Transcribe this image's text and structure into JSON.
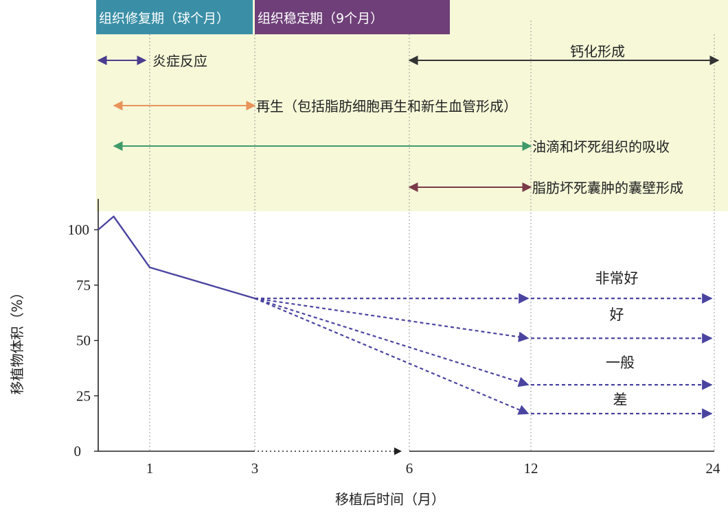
{
  "phases": [
    {
      "label": "组织修复期（球个月）",
      "color": "#3a8fa6"
    },
    {
      "label": "组织稳定期（9个月）",
      "color": "#6e3f78"
    }
  ],
  "processes": [
    {
      "label": "炎症反应",
      "from": 0,
      "to": 1,
      "color": "#4a3d8f"
    },
    {
      "label": "钙化形成",
      "from": 6,
      "to": 24,
      "color": "#333333"
    },
    {
      "label": "再生（包括脂肪细胞再生和新生血管形成）",
      "from": 0.3,
      "to": 3,
      "color": "#e8935a"
    },
    {
      "label": "油滴和坏死组织的吸收",
      "from": 0.3,
      "to": 12,
      "color": "#3f9a6b"
    },
    {
      "label": "脂肪坏死囊肿的囊壁形成",
      "from": 6,
      "to": 12,
      "color": "#7a3a4a"
    }
  ],
  "chart_data": {
    "type": "line",
    "xlabel": "移植后时间（月）",
    "ylabel": "移植物体积（%）",
    "x_ticks": [
      1,
      3,
      6,
      12,
      24
    ],
    "y_ticks": [
      0,
      25,
      50,
      75,
      100
    ],
    "ylim": [
      0,
      110
    ],
    "series": [
      {
        "x": [
          0,
          0.3,
          1,
          3
        ],
        "values": [
          100,
          106,
          83,
          69
        ],
        "style": "solid"
      },
      {
        "name": "非常好",
        "x": [
          3,
          12,
          24
        ],
        "values": [
          69,
          69,
          69
        ],
        "style": "dashed"
      },
      {
        "name": "好",
        "x": [
          3,
          12,
          24
        ],
        "values": [
          69,
          51,
          51
        ],
        "style": "dashed"
      },
      {
        "name": "一般",
        "x": [
          3,
          12,
          24
        ],
        "values": [
          69,
          30,
          30
        ],
        "style": "dashed"
      },
      {
        "name": "差",
        "x": [
          3,
          12,
          24
        ],
        "values": [
          69,
          17,
          17
        ],
        "style": "dashed"
      }
    ],
    "x_axis_arrow": {
      "from": 3,
      "to": 6,
      "style": "dotted"
    },
    "line_color": "#4a44a0",
    "background_color": "#f6f8d8",
    "grid": "vertical dotted lines at x ticks"
  }
}
